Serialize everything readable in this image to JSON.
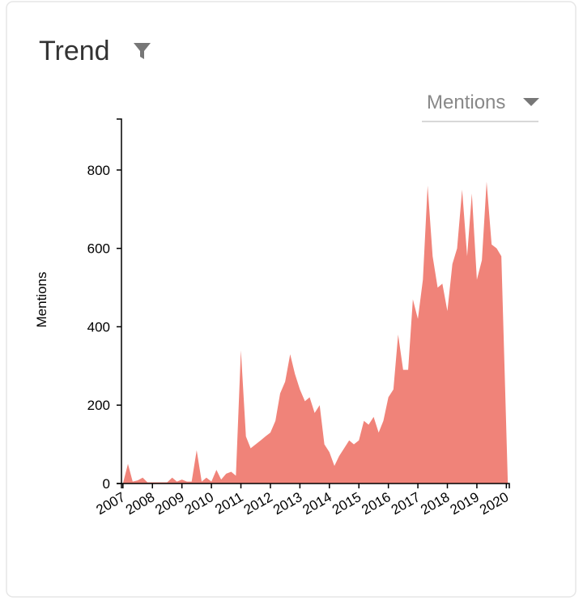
{
  "chart_data": {
    "type": "area",
    "title": "Trend",
    "y_label": "Mentions",
    "color": "#f08379",
    "x": [
      2007,
      2007.17,
      2007.33,
      2007.5,
      2007.67,
      2007.83,
      2008,
      2008.17,
      2008.33,
      2008.5,
      2008.67,
      2008.83,
      2009,
      2009.17,
      2009.33,
      2009.5,
      2009.67,
      2009.83,
      2010,
      2010.17,
      2010.33,
      2010.5,
      2010.67,
      2010.83,
      2011,
      2011.17,
      2011.33,
      2011.5,
      2011.67,
      2011.83,
      2012,
      2012.17,
      2012.33,
      2012.5,
      2012.67,
      2012.83,
      2013,
      2013.17,
      2013.33,
      2013.5,
      2013.67,
      2013.83,
      2014,
      2014.17,
      2014.33,
      2014.5,
      2014.67,
      2014.83,
      2015,
      2015.17,
      2015.33,
      2015.5,
      2015.67,
      2015.83,
      2016,
      2016.17,
      2016.33,
      2016.5,
      2016.67,
      2016.83,
      2017,
      2017.17,
      2017.33,
      2017.5,
      2017.67,
      2017.83,
      2018,
      2018.17,
      2018.33,
      2018.5,
      2018.67,
      2018.83,
      2019,
      2019.17,
      2019.33,
      2019.5,
      2019.67,
      2019.83,
      2020.05
    ],
    "values": [
      0,
      50,
      5,
      8,
      15,
      3,
      3,
      3,
      3,
      3,
      15,
      5,
      10,
      5,
      5,
      85,
      5,
      15,
      5,
      35,
      10,
      25,
      30,
      20,
      340,
      120,
      90,
      100,
      110,
      120,
      130,
      160,
      230,
      260,
      330,
      280,
      240,
      210,
      220,
      180,
      200,
      100,
      80,
      45,
      70,
      90,
      110,
      100,
      110,
      160,
      150,
      170,
      130,
      160,
      220,
      240,
      380,
      290,
      290,
      470,
      420,
      520,
      760,
      580,
      500,
      510,
      440,
      560,
      600,
      750,
      580,
      740,
      520,
      570,
      770,
      610,
      600,
      580,
      0
    ],
    "xlim": [
      2006.95,
      2020.1
    ],
    "xticks": [
      2007,
      2008,
      2009,
      2010,
      2011,
      2012,
      2013,
      2014,
      2015,
      2016,
      2017,
      2018,
      2019,
      2020
    ],
    "ylim": [
      0,
      930
    ],
    "yticks": [
      0,
      200,
      400,
      600,
      800
    ]
  },
  "dropdown": {
    "label": "Mentions"
  }
}
